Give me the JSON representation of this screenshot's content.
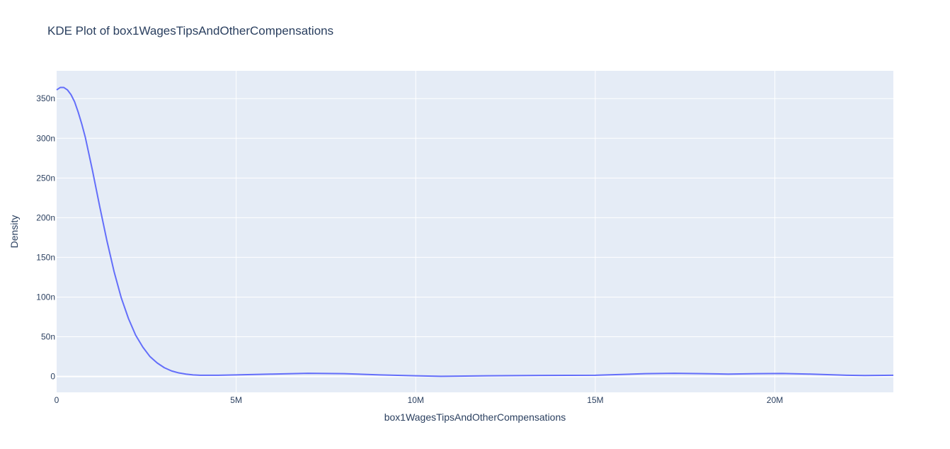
{
  "chart_data": {
    "type": "line",
    "title": "KDE Plot of box1WagesTipsAndOtherCompensations",
    "xlabel": "box1WagesTipsAndOtherCompensations",
    "ylabel": "Density",
    "xlim": [
      0,
      23300000
    ],
    "ylim": [
      -2e-08,
      3.85e-07
    ],
    "grid": true,
    "legend": "none",
    "colors": {
      "plot_bg": "#e5ecf6",
      "grid": "#ffffff",
      "line": "#636efa",
      "text": "#2a3f5f"
    },
    "x_ticks": [
      {
        "value": 0,
        "label": "0"
      },
      {
        "value": 5000000,
        "label": "5M"
      },
      {
        "value": 10000000,
        "label": "10M"
      },
      {
        "value": 15000000,
        "label": "15M"
      },
      {
        "value": 20000000,
        "label": "20M"
      }
    ],
    "y_ticks": [
      {
        "value": 0,
        "label": "0"
      },
      {
        "value": 5e-08,
        "label": "50n"
      },
      {
        "value": 1e-07,
        "label": "100n"
      },
      {
        "value": 1.5e-07,
        "label": "150n"
      },
      {
        "value": 2e-07,
        "label": "200n"
      },
      {
        "value": 2.5e-07,
        "label": "250n"
      },
      {
        "value": 3e-07,
        "label": "300n"
      },
      {
        "value": 3.5e-07,
        "label": "350n"
      }
    ],
    "series": [
      {
        "x": [
          0,
          100000,
          200000,
          300000,
          400000,
          500000,
          600000,
          700000,
          800000,
          900000,
          1000000,
          1200000,
          1400000,
          1600000,
          1800000,
          2000000,
          2200000,
          2400000,
          2600000,
          2800000,
          3000000,
          3200000,
          3400000,
          3600000,
          3800000,
          4000000,
          4500000,
          5000000,
          6000000,
          7000000,
          8000000,
          9000000,
          10000000,
          10700000,
          12000000,
          13500000,
          15000000,
          16400000,
          17200000,
          18000000,
          18700000,
          19500000,
          20200000,
          21000000,
          22000000,
          22500000,
          23300000
        ],
        "y": [
          3.61e-07,
          3.64e-07,
          3.64e-07,
          3.61e-07,
          3.55e-07,
          3.46e-07,
          3.33e-07,
          3.18e-07,
          3.01e-07,
          2.8e-07,
          2.59e-07,
          2.14e-07,
          1.71e-07,
          1.32e-07,
          9.9e-08,
          7.3e-08,
          5.2e-08,
          3.7e-08,
          2.5e-08,
          1.7e-08,
          1.1e-08,
          7e-09,
          4.5e-09,
          3e-09,
          2e-09,
          1.5e-09,
          1.5e-09,
          2e-09,
          3e-09,
          4e-09,
          3.5e-09,
          2e-09,
          8e-10,
          2e-10,
          8e-10,
          1.3e-09,
          1.5e-09,
          3.5e-09,
          4e-09,
          3.5e-09,
          3e-09,
          3.5e-09,
          3.8e-09,
          3e-09,
          1.5e-09,
          1.2e-09,
          1.5e-09
        ]
      }
    ]
  }
}
